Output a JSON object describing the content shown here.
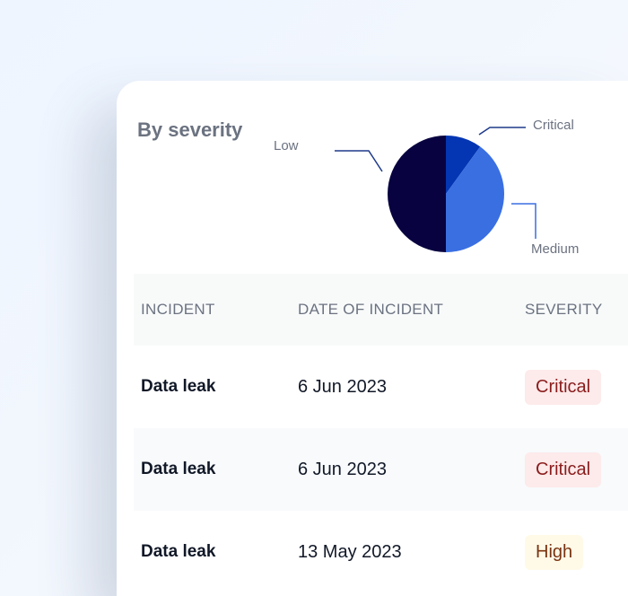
{
  "title": "By severity",
  "chart_data": {
    "type": "pie",
    "title": "By severity",
    "slices": [
      {
        "label": "Critical",
        "value": 10,
        "color": "#0436b3"
      },
      {
        "label": "Medium",
        "value": 40,
        "color": "#3a6fe2"
      },
      {
        "label": "Low",
        "value": 50,
        "color": "#080340"
      }
    ],
    "leader_color": "#1e3a8a"
  },
  "table": {
    "headers": [
      "INCIDENT",
      "DATE OF INCIDENT",
      "SEVERITY"
    ],
    "rows": [
      {
        "incident": "Data leak",
        "date": "6 Jun 2023",
        "severity": "Critical"
      },
      {
        "incident": "Data leak",
        "date": "6 Jun 2023",
        "severity": "Critical"
      },
      {
        "incident": "Data leak",
        "date": "13 May 2023",
        "severity": "High"
      }
    ]
  }
}
